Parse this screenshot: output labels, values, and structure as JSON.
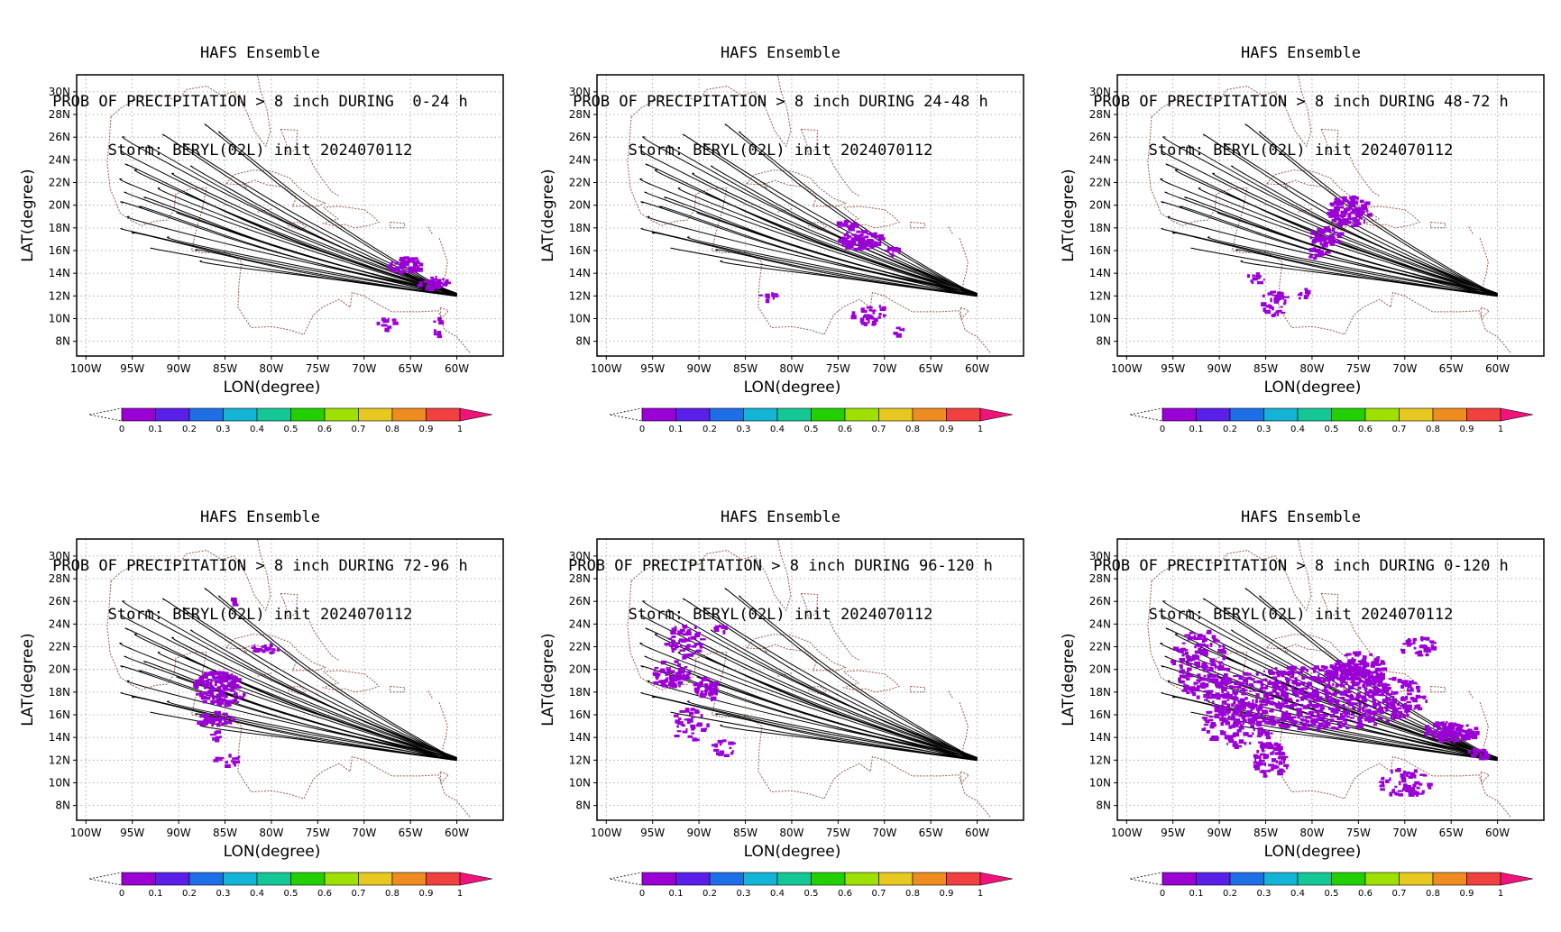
{
  "axis": {
    "xlabel": "LON(degree)",
    "ylabel": "LAT(degree)",
    "lon_ticks": [
      "100W",
      "95W",
      "90W",
      "85W",
      "80W",
      "75W",
      "70W",
      "65W",
      "60W"
    ],
    "lat_ticks": [
      "8N",
      "10N",
      "12N",
      "14N",
      "16N",
      "18N",
      "20N",
      "22N",
      "24N",
      "26N",
      "28N",
      "30N"
    ],
    "lon_range": [
      -101,
      -55
    ],
    "lat_range": [
      6.7,
      31.5
    ]
  },
  "colorbar": {
    "labels": [
      "0",
      "0.1",
      "0.2",
      "0.3",
      "0.4",
      "0.5",
      "0.6",
      "0.7",
      "0.8",
      "0.9",
      "1"
    ],
    "colors": [
      "#9a00d6",
      "#5a1fe8",
      "#1e6ee8",
      "#14b4d6",
      "#14c896",
      "#22d000",
      "#9ee000",
      "#e6c820",
      "#ee8c20",
      "#f04040"
    ],
    "overflow_color": "#f0147a"
  },
  "panels": [
    {
      "title1": "HAFS Ensemble",
      "title2": "PROB OF PRECIPITATION > 8 inch DURING  0-24 h",
      "title3": "Storm: BERYL(02L) init 2024070112",
      "hours": "0-24 h"
    },
    {
      "title1": "HAFS Ensemble",
      "title2": "PROB OF PRECIPITATION > 8 inch DURING 24-48 h",
      "title3": "Storm: BERYL(02L) init 2024070112",
      "hours": "24-48 h"
    },
    {
      "title1": "HAFS Ensemble",
      "title2": "PROB OF PRECIPITATION > 8 inch DURING 48-72 h",
      "title3": "Storm: BERYL(02L) init 2024070112",
      "hours": "48-72 h"
    },
    {
      "title1": "HAFS Ensemble",
      "title2": "PROB OF PRECIPITATION > 8 inch DURING 72-96 h",
      "title3": "Storm: BERYL(02L) init 2024070112",
      "hours": "72-96 h"
    },
    {
      "title1": "HAFS Ensemble",
      "title2": "PROB OF PRECIPITATION > 8 inch DURING 96-120 h",
      "title3": "Storm: BERYL(02L) init 2024070112",
      "hours": "96-120 h"
    },
    {
      "title1": "HAFS Ensemble",
      "title2": "PROB OF PRECIPITATION > 8 inch DURING 0-120 h",
      "title3": "Storm: BERYL(02L) init 2024070112",
      "hours": "0-120 h"
    }
  ],
  "tracks": {
    "start": {
      "lon": -60.0,
      "lat": 12.1
    },
    "ends": [
      {
        "lon": -95.8,
        "lat": 26.0
      },
      {
        "lon": -96.0,
        "lat": 24.7
      },
      {
        "lon": -95.5,
        "lat": 23.5
      },
      {
        "lon": -96.1,
        "lat": 22.3
      },
      {
        "lon": -95.6,
        "lat": 21.1
      },
      {
        "lon": -96.0,
        "lat": 20.2
      },
      {
        "lon": -95.3,
        "lat": 19.0
      },
      {
        "lon": -96.0,
        "lat": 17.9
      },
      {
        "lon": -94.8,
        "lat": 17.5
      },
      {
        "lon": -94.5,
        "lat": 23.1
      },
      {
        "lon": -93.1,
        "lat": 25.2
      },
      {
        "lon": -91.5,
        "lat": 26.1
      },
      {
        "lon": -89.3,
        "lat": 25.4
      },
      {
        "lon": -85.5,
        "lat": 26.4
      },
      {
        "lon": -87.0,
        "lat": 27.0
      },
      {
        "lon": -92.0,
        "lat": 21.5
      },
      {
        "lon": -90.0,
        "lat": 19.3
      },
      {
        "lon": -88.0,
        "lat": 16.0
      },
      {
        "lon": -87.5,
        "lat": 15.1
      },
      {
        "lon": -92.8,
        "lat": 16.2
      },
      {
        "lon": -93.5,
        "lat": 20.6
      },
      {
        "lon": -90.5,
        "lat": 22.8
      },
      {
        "lon": -88.5,
        "lat": 23.4
      },
      {
        "lon": -94.0,
        "lat": 19.8
      },
      {
        "lon": -91.0,
        "lat": 17.2
      },
      {
        "lon": -89.0,
        "lat": 21.0
      }
    ]
  },
  "precip_regions": [
    [
      {
        "lon": -65.5,
        "lat": 14.7,
        "rx": 1.9,
        "ry": 0.7,
        "n": 60
      },
      {
        "lon": -62.5,
        "lat": 13.1,
        "rx": 1.6,
        "ry": 0.5,
        "n": 40
      },
      {
        "lon": -67.5,
        "lat": 9.5,
        "rx": 1.0,
        "ry": 0.6,
        "n": 10
      },
      {
        "lon": -62.0,
        "lat": 9.0,
        "rx": 0.6,
        "ry": 1.0,
        "n": 8
      }
    ],
    [
      {
        "lon": -72.5,
        "lat": 16.9,
        "rx": 2.5,
        "ry": 0.8,
        "n": 90
      },
      {
        "lon": -74.0,
        "lat": 18.2,
        "rx": 1.0,
        "ry": 0.4,
        "n": 15
      },
      {
        "lon": -69.0,
        "lat": 15.9,
        "rx": 0.8,
        "ry": 0.4,
        "n": 10
      },
      {
        "lon": -82.5,
        "lat": 11.8,
        "rx": 1.0,
        "ry": 0.5,
        "n": 10
      },
      {
        "lon": -71.5,
        "lat": 10.3,
        "rx": 2.0,
        "ry": 1.0,
        "n": 30
      },
      {
        "lon": -68.5,
        "lat": 9.0,
        "rx": 0.6,
        "ry": 0.5,
        "n": 6
      }
    ],
    [
      {
        "lon": -76.0,
        "lat": 19.5,
        "rx": 2.3,
        "ry": 1.4,
        "n": 110
      },
      {
        "lon": -78.5,
        "lat": 17.2,
        "rx": 1.8,
        "ry": 0.8,
        "n": 50
      },
      {
        "lon": -79.5,
        "lat": 15.8,
        "rx": 1.2,
        "ry": 0.5,
        "n": 15
      },
      {
        "lon": -84.0,
        "lat": 11.3,
        "rx": 1.6,
        "ry": 1.1,
        "n": 35
      },
      {
        "lon": -86.0,
        "lat": 13.5,
        "rx": 1.0,
        "ry": 0.5,
        "n": 10
      },
      {
        "lon": -81.0,
        "lat": 12.2,
        "rx": 0.6,
        "ry": 0.5,
        "n": 8
      }
    ],
    [
      {
        "lon": -85.5,
        "lat": 18.3,
        "rx": 2.8,
        "ry": 1.6,
        "n": 120
      },
      {
        "lon": -80.5,
        "lat": 21.8,
        "rx": 1.5,
        "ry": 0.4,
        "n": 20
      },
      {
        "lon": -86.0,
        "lat": 15.6,
        "rx": 2.0,
        "ry": 0.6,
        "n": 35
      },
      {
        "lon": -84.5,
        "lat": 12.0,
        "rx": 1.5,
        "ry": 0.6,
        "n": 15
      },
      {
        "lon": -84.0,
        "lat": 26.0,
        "rx": 0.4,
        "ry": 0.4,
        "n": 4
      },
      {
        "lon": -85.5,
        "lat": 14.1,
        "rx": 1.0,
        "ry": 0.4,
        "n": 10
      }
    ],
    [
      {
        "lon": -91.5,
        "lat": 22.5,
        "rx": 2.0,
        "ry": 1.5,
        "n": 60
      },
      {
        "lon": -93.0,
        "lat": 19.5,
        "rx": 2.0,
        "ry": 1.3,
        "n": 60
      },
      {
        "lon": -89.0,
        "lat": 18.3,
        "rx": 1.5,
        "ry": 1.0,
        "n": 40
      },
      {
        "lon": -91.0,
        "lat": 15.0,
        "rx": 2.0,
        "ry": 1.5,
        "n": 40
      },
      {
        "lon": -87.0,
        "lat": 13.0,
        "rx": 1.5,
        "ry": 0.8,
        "n": 15
      },
      {
        "lon": -87.5,
        "lat": 23.5,
        "rx": 0.8,
        "ry": 0.4,
        "n": 8
      }
    ],
    [
      {
        "lon": -79.5,
        "lat": 17.5,
        "rx": 12.0,
        "ry": 2.8,
        "n": 700
      },
      {
        "lon": -75.0,
        "lat": 20.0,
        "rx": 3.0,
        "ry": 1.5,
        "n": 150
      },
      {
        "lon": -65.0,
        "lat": 14.5,
        "rx": 3.0,
        "ry": 0.9,
        "n": 120
      },
      {
        "lon": -92.0,
        "lat": 20.5,
        "rx": 3.0,
        "ry": 3.0,
        "n": 150
      },
      {
        "lon": -88.0,
        "lat": 15.0,
        "rx": 4.0,
        "ry": 2.0,
        "n": 120
      },
      {
        "lon": -84.5,
        "lat": 12.0,
        "rx": 2.0,
        "ry": 1.5,
        "n": 80
      },
      {
        "lon": -70.0,
        "lat": 10.0,
        "rx": 3.0,
        "ry": 1.2,
        "n": 60
      },
      {
        "lon": -62.0,
        "lat": 12.5,
        "rx": 1.2,
        "ry": 0.5,
        "n": 25
      },
      {
        "lon": -68.5,
        "lat": 22.0,
        "rx": 2.0,
        "ry": 0.8,
        "n": 40
      }
    ]
  ]
}
